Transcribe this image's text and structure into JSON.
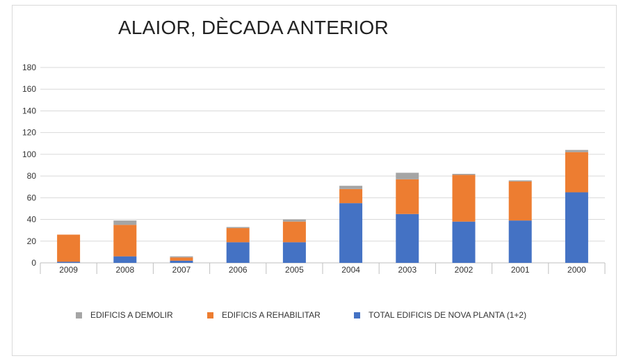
{
  "chart_data": {
    "type": "bar",
    "stacked": true,
    "title": "ALAIOR, DÈCADA ANTERIOR",
    "xlabel": "",
    "ylabel": "",
    "ylim": [
      0,
      180
    ],
    "yticks": [
      0,
      20,
      40,
      60,
      80,
      100,
      120,
      140,
      160,
      180
    ],
    "grid": true,
    "legend_position": "bottom",
    "categories": [
      "2009",
      "2008",
      "2007",
      "2006",
      "2005",
      "2004",
      "2003",
      "2002",
      "2001",
      "2000"
    ],
    "series": [
      {
        "name": "TOTAL EDIFICIS DE NOVA PLANTA (1+2)",
        "color": "#4472c4",
        "values": [
          1,
          6,
          2,
          19,
          19,
          55,
          45,
          38,
          39,
          65
        ]
      },
      {
        "name": "EDIFICIS A REHABILITAR",
        "color": "#ed7d31",
        "values": [
          25,
          29,
          3,
          13,
          19,
          13,
          32,
          43,
          36,
          37
        ]
      },
      {
        "name": "EDIFICIS A DEMOLIR",
        "color": "#a5a5a5",
        "values": [
          0,
          4,
          1,
          1,
          2,
          3,
          6,
          1,
          1,
          2
        ]
      }
    ],
    "legend_order": [
      2,
      1,
      0
    ]
  }
}
